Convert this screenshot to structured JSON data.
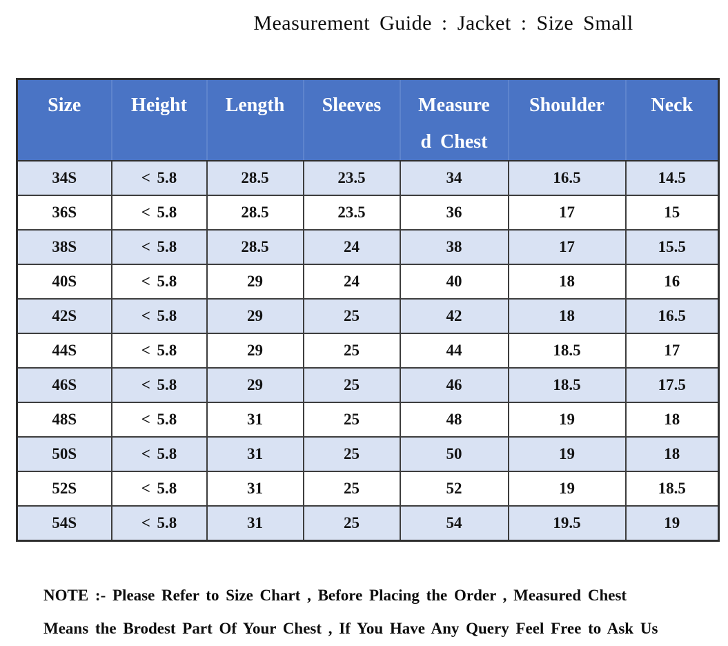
{
  "page": {
    "title": "Measurement Guide : Jacket : Size Small"
  },
  "colors": {
    "header_bg": "#4a74c5",
    "header_text": "#ffffff",
    "row_alt_bg": "#d9e2f3",
    "row_bg": "#ffffff",
    "border": "#2e2e2e",
    "text": "#141414"
  },
  "table": {
    "columns": [
      {
        "id": "size",
        "label": "Size",
        "lines": [
          "Size"
        ]
      },
      {
        "id": "height",
        "label": "Height",
        "lines": [
          "Height"
        ]
      },
      {
        "id": "length",
        "label": "Length",
        "lines": [
          "Length"
        ]
      },
      {
        "id": "sleeves",
        "label": "Sleeves",
        "lines": [
          "Sleeves"
        ]
      },
      {
        "id": "measured-chest",
        "label": "Measured Chest",
        "lines": [
          "Measure",
          "d Chest"
        ]
      },
      {
        "id": "shoulder",
        "label": "Shoulder",
        "lines": [
          "Shoulder"
        ]
      },
      {
        "id": "neck",
        "label": "Neck",
        "lines": [
          "Neck"
        ]
      }
    ],
    "rows": [
      [
        "34S",
        "< 5.8",
        "28.5",
        "23.5",
        "34",
        "16.5",
        "14.5"
      ],
      [
        "36S",
        "< 5.8",
        "28.5",
        "23.5",
        "36",
        "17",
        "15"
      ],
      [
        "38S",
        "< 5.8",
        "28.5",
        "24",
        "38",
        "17",
        "15.5"
      ],
      [
        "40S",
        "< 5.8",
        "29",
        "24",
        "40",
        "18",
        "16"
      ],
      [
        "42S",
        "< 5.8",
        "29",
        "25",
        "42",
        "18",
        "16.5"
      ],
      [
        "44S",
        "< 5.8",
        "29",
        "25",
        "44",
        "18.5",
        "17"
      ],
      [
        "46S",
        "< 5.8",
        "29",
        "25",
        "46",
        "18.5",
        "17.5"
      ],
      [
        "48S",
        "< 5.8",
        "31",
        "25",
        "48",
        "19",
        "18"
      ],
      [
        "50S",
        "< 5.8",
        "31",
        "25",
        "50",
        "19",
        "18"
      ],
      [
        "52S",
        "< 5.8",
        "31",
        "25",
        "52",
        "19",
        "18.5"
      ],
      [
        "54S",
        "< 5.8",
        "31",
        "25",
        "54",
        "19.5",
        "19"
      ]
    ]
  },
  "note": {
    "line1": "NOTE :- Please Refer to Size Chart , Before Placing the Order , Measured Chest",
    "line2": "Means the Brodest Part Of Your Chest , If You Have Any Query Feel Free to Ask Us"
  }
}
